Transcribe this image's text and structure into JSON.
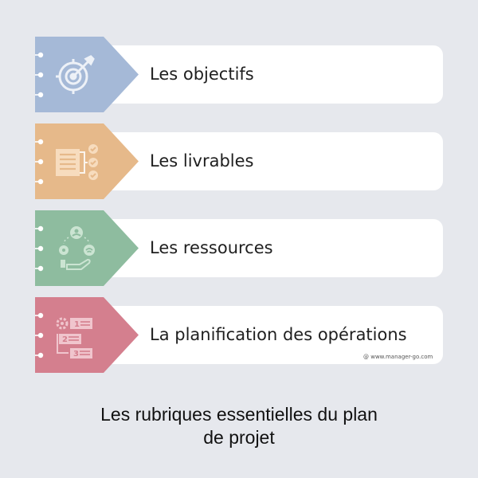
{
  "items": [
    {
      "label": "Les objectifs",
      "color": "#a5b9d7",
      "icon": "target-arrow-icon"
    },
    {
      "label": "Les livrables",
      "color": "#e6b98a",
      "icon": "checklist-icon"
    },
    {
      "label": "Les ressources",
      "color": "#8ebc9f",
      "icon": "resources-cycle-icon"
    },
    {
      "label": "La planification des opérations",
      "color": "#d47f8e",
      "icon": "numbered-steps-icon"
    }
  ],
  "credit": "@ www.manager-go.com",
  "caption": {
    "line1": "Les rubriques essentielles du plan",
    "line2": "de projet"
  }
}
